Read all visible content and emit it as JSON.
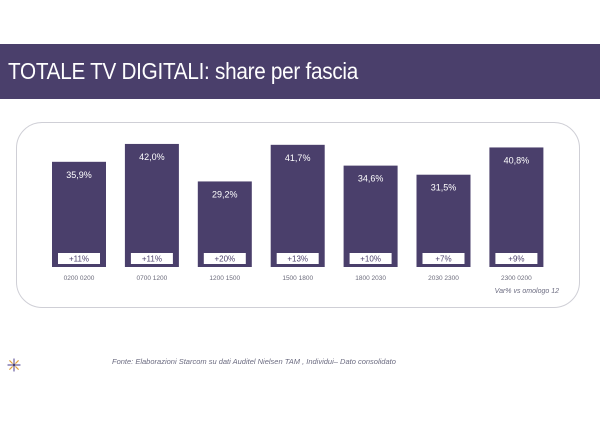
{
  "header": {
    "title": "TOTALE TV DIGITALI: share per fascia"
  },
  "note": "Var% vs omologo 12",
  "source": "Fonte: Elaborazioni Starcom su dati Auditel Nielsen TAM , Individui– Dato consolidato",
  "colors": {
    "bar": "#4a3f6b",
    "header": "#4a3f6b"
  },
  "logo": {
    "icon": "starburst-logo-icon"
  },
  "chart_data": {
    "type": "bar",
    "title": "",
    "xlabel": "",
    "ylabel": "",
    "ylim": [
      0,
      45
    ],
    "grid": false,
    "categories": [
      "0200 0200",
      "0700 1200",
      "1200 1500",
      "1500 1800",
      "1800 2030",
      "2030 2300",
      "2300 0200"
    ],
    "values": [
      35.9,
      42.0,
      29.2,
      41.7,
      34.6,
      31.5,
      40.8
    ],
    "value_labels": [
      "35,9%",
      "42,0%",
      "29,2%",
      "41,7%",
      "34,6%",
      "31,5%",
      "40,8%"
    ],
    "variation_labels": [
      "+11%",
      "+11%",
      "+20%",
      "+13%",
      "+10%",
      "+7%",
      "+9%"
    ]
  }
}
